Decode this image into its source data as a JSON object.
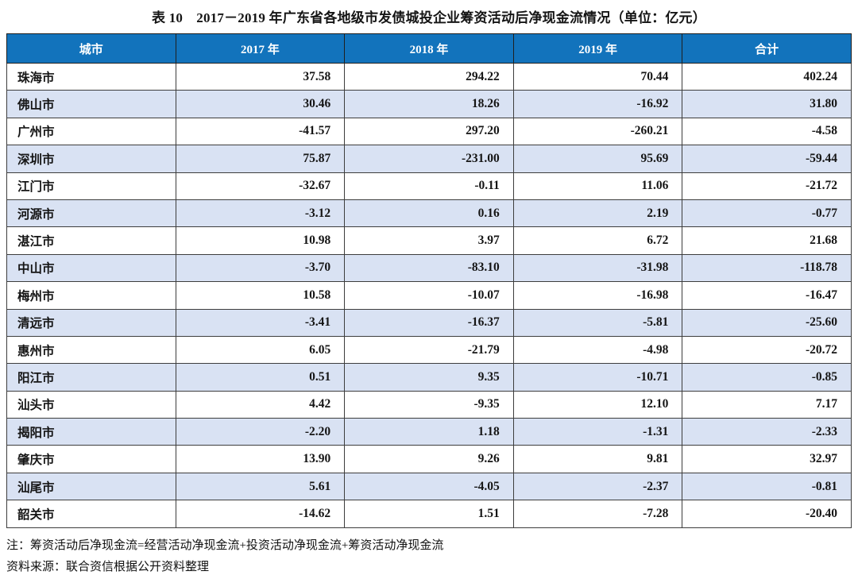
{
  "title": "表 10　2017－2019 年广东省各地级市发债城投企业筹资活动后净现金流情况（单位：亿元）",
  "table": {
    "columns": [
      "城市",
      "2017 年",
      "2018 年",
      "2019 年",
      "合计"
    ],
    "rows": [
      {
        "city": "珠海市",
        "values": [
          "37.58",
          "294.22",
          "70.44",
          "402.24"
        ]
      },
      {
        "city": "佛山市",
        "values": [
          "30.46",
          "18.26",
          "-16.92",
          "31.80"
        ]
      },
      {
        "city": "广州市",
        "values": [
          "-41.57",
          "297.20",
          "-260.21",
          "-4.58"
        ]
      },
      {
        "city": "深圳市",
        "values": [
          "75.87",
          "-231.00",
          "95.69",
          "-59.44"
        ]
      },
      {
        "city": "江门市",
        "values": [
          "-32.67",
          "-0.11",
          "11.06",
          "-21.72"
        ]
      },
      {
        "city": "河源市",
        "values": [
          "-3.12",
          "0.16",
          "2.19",
          "-0.77"
        ]
      },
      {
        "city": "湛江市",
        "values": [
          "10.98",
          "3.97",
          "6.72",
          "21.68"
        ]
      },
      {
        "city": "中山市",
        "values": [
          "-3.70",
          "-83.10",
          "-31.98",
          "-118.78"
        ]
      },
      {
        "city": "梅州市",
        "values": [
          "10.58",
          "-10.07",
          "-16.98",
          "-16.47"
        ]
      },
      {
        "city": "清远市",
        "values": [
          "-3.41",
          "-16.37",
          "-5.81",
          "-25.60"
        ]
      },
      {
        "city": "惠州市",
        "values": [
          "6.05",
          "-21.79",
          "-4.98",
          "-20.72"
        ]
      },
      {
        "city": "阳江市",
        "values": [
          "0.51",
          "9.35",
          "-10.71",
          "-0.85"
        ]
      },
      {
        "city": "汕头市",
        "values": [
          "4.42",
          "-9.35",
          "12.10",
          "7.17"
        ]
      },
      {
        "city": "揭阳市",
        "values": [
          "-2.20",
          "1.18",
          "-1.31",
          "-2.33"
        ]
      },
      {
        "city": "肇庆市",
        "values": [
          "13.90",
          "9.26",
          "9.81",
          "32.97"
        ]
      },
      {
        "city": "汕尾市",
        "values": [
          "5.61",
          "-4.05",
          "-2.37",
          "-0.81"
        ]
      },
      {
        "city": "韶关市",
        "values": [
          "-14.62",
          "1.51",
          "-7.28",
          "-20.40"
        ]
      }
    ]
  },
  "notes": [
    "注：筹资活动后净现金流=经营活动净现金流+投资活动净现金流+筹资活动净现金流",
    "资料来源：联合资信根据公开资料整理"
  ],
  "colors": {
    "header_bg": "#1273bc",
    "header_fg": "#ffffff",
    "alt_row_bg": "#d9e2f3",
    "border": "#3d3d3d"
  }
}
